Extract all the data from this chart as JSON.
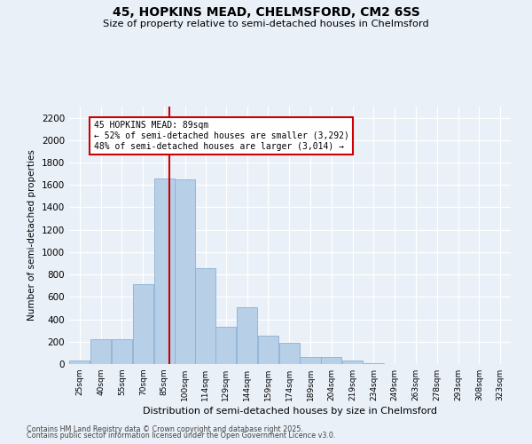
{
  "title1": "45, HOPKINS MEAD, CHELMSFORD, CM2 6SS",
  "title2": "Size of property relative to semi-detached houses in Chelmsford",
  "xlabel": "Distribution of semi-detached houses by size in Chelmsford",
  "ylabel": "Number of semi-detached properties",
  "categories": [
    "25sqm",
    "40sqm",
    "55sqm",
    "70sqm",
    "85sqm",
    "100sqm",
    "114sqm",
    "129sqm",
    "144sqm",
    "159sqm",
    "174sqm",
    "189sqm",
    "204sqm",
    "219sqm",
    "234sqm",
    "249sqm",
    "263sqm",
    "278sqm",
    "293sqm",
    "308sqm",
    "323sqm"
  ],
  "bar_heights": [
    30,
    220,
    220,
    710,
    1660,
    1650,
    860,
    330,
    510,
    255,
    190,
    60,
    60,
    30,
    10,
    0,
    0,
    0,
    0,
    0,
    0
  ],
  "property_label": "45 HOPKINS MEAD: 89sqm",
  "pct_smaller": 52,
  "pct_larger": 48,
  "n_smaller": "3,292",
  "n_larger": "3,014",
  "vline_x": 89,
  "bar_color": "#b8cfe8",
  "bar_edge_color": "#8ab0d4",
  "vline_color": "#cc0000",
  "annotation_box_color": "#cc0000",
  "background_color": "#eaf0f8",
  "grid_color": "#ffffff",
  "ylim": [
    0,
    2300
  ],
  "yticks": [
    0,
    200,
    400,
    600,
    800,
    1000,
    1200,
    1400,
    1600,
    1800,
    2000,
    2200
  ],
  "footer1": "Contains HM Land Registry data © Crown copyright and database right 2025.",
  "footer2": "Contains public sector information licensed under the Open Government Licence v3.0.",
  "bin_edges": [
    17.5,
    32.5,
    47.5,
    62.5,
    77.5,
    92.5,
    107.5,
    121.5,
    136.5,
    151.5,
    166.5,
    181.5,
    196.5,
    211.5,
    226.5,
    241.5,
    256.5,
    271.5,
    286.5,
    301.5,
    316.5,
    331.5
  ]
}
